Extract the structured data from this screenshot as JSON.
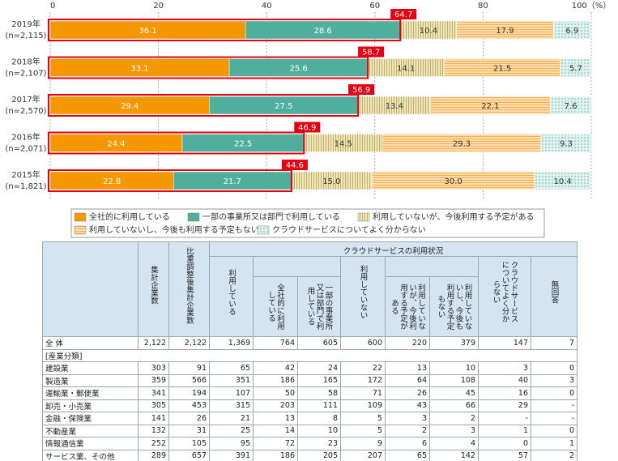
{
  "chart_data": {
    "type": "bar",
    "orientation": "horizontal",
    "stacked": true,
    "categories": [
      "2019年",
      "2018年",
      "2017年",
      "2016年",
      "2015年"
    ],
    "category_notes": [
      "(n=2,115)",
      "(n=2,107)",
      "(n=2,570)",
      "(n=2,071)",
      "(n=1,821)"
    ],
    "xlim": [
      0,
      100
    ],
    "xticks": [
      0,
      20,
      40,
      60,
      80,
      {
        "value": 100,
        "label": "100（%）"
      }
    ],
    "grid": true,
    "series": [
      {
        "name": "全社的に利用している",
        "color": "#f39800",
        "values": [
          36.1,
          33.1,
          29.4,
          24.4,
          22.8
        ],
        "value_labels": [
          "36.1",
          "33.1",
          "29.4",
          "24.4",
          "22.8"
        ]
      },
      {
        "name": "一部の事業所又は部門で利用している",
        "color": "#4fae9c",
        "values": [
          28.6,
          25.6,
          27.5,
          22.5,
          21.7
        ],
        "value_labels": [
          "28.6",
          "25.6",
          "27.5",
          "22.5",
          "21.7"
        ]
      },
      {
        "name": "利用していないが、今後利用する予定がある",
        "color": "#c4b064",
        "pattern": "vertical-lines",
        "values": [
          10.4,
          14.1,
          13.4,
          14.5,
          15.0
        ],
        "value_labels": [
          "10.4",
          "14.1",
          "13.4",
          "14.5",
          "15.0"
        ]
      },
      {
        "name": "利用していないし、今後も利用する予定もない",
        "color": "#f5b04f",
        "pattern": "horizontal-lines",
        "values": [
          17.9,
          21.5,
          22.1,
          29.3,
          30.0
        ],
        "value_labels": [
          "17.9",
          "21.5",
          "22.1",
          "29.3",
          "30.0"
        ]
      },
      {
        "name": "クラウドサービスについてよく分からない",
        "color": "#7cc5b6",
        "pattern": "dots",
        "values": [
          6.9,
          5.7,
          7.6,
          9.3,
          10.4
        ],
        "value_labels": [
          "6.9",
          "5.7",
          "7.6",
          "9.3",
          "10.4"
        ]
      }
    ],
    "utilization_totals": [
      64.7,
      58.7,
      56.9,
      46.9,
      44.6
    ],
    "highlight_color": "#e60012"
  },
  "table": {
    "group": "クラウドサービスの利用状況",
    "columns": [
      "集計企業数",
      "比重調整後集計企業数",
      "利用している",
      "全社的に利用している",
      "一部の事業所又は部門で利用している",
      "利用していない",
      "利用していないが、今後利用する予定がある",
      "利用していないし、今後も利用する予定もない",
      "クラウドサービスについてよく分からない",
      "無回答"
    ],
    "rows": [
      [
        "全 体",
        "2,122",
        "2,122",
        "1,369",
        "764",
        "605",
        "600",
        "220",
        "379",
        "147",
        "7"
      ],
      [
        "[産業分類]"
      ],
      [
        "建設業",
        "303",
        "91",
        "65",
        "42",
        "24",
        "22",
        "13",
        "10",
        "3",
        "0"
      ],
      [
        "製造業",
        "359",
        "566",
        "351",
        "186",
        "165",
        "172",
        "64",
        "108",
        "40",
        "3"
      ],
      [
        "運輸業・郵便業",
        "341",
        "194",
        "107",
        "50",
        "58",
        "71",
        "26",
        "45",
        "16",
        "0"
      ],
      [
        "卸売・小売業",
        "305",
        "453",
        "315",
        "203",
        "111",
        "109",
        "43",
        "66",
        "29",
        "-"
      ],
      [
        "金融・保険業",
        "141",
        "26",
        "21",
        "13",
        "8",
        "5",
        "3",
        "2",
        "-",
        "-"
      ],
      [
        "不動産業",
        "132",
        "31",
        "25",
        "14",
        "10",
        "5",
        "2",
        "3",
        "1",
        "0"
      ],
      [
        "情報通信業",
        "252",
        "105",
        "95",
        "72",
        "23",
        "9",
        "6",
        "4",
        "0",
        "1"
      ],
      [
        "サービス業、その他",
        "289",
        "657",
        "391",
        "186",
        "205",
        "207",
        "65",
        "142",
        "57",
        "2"
      ]
    ]
  }
}
